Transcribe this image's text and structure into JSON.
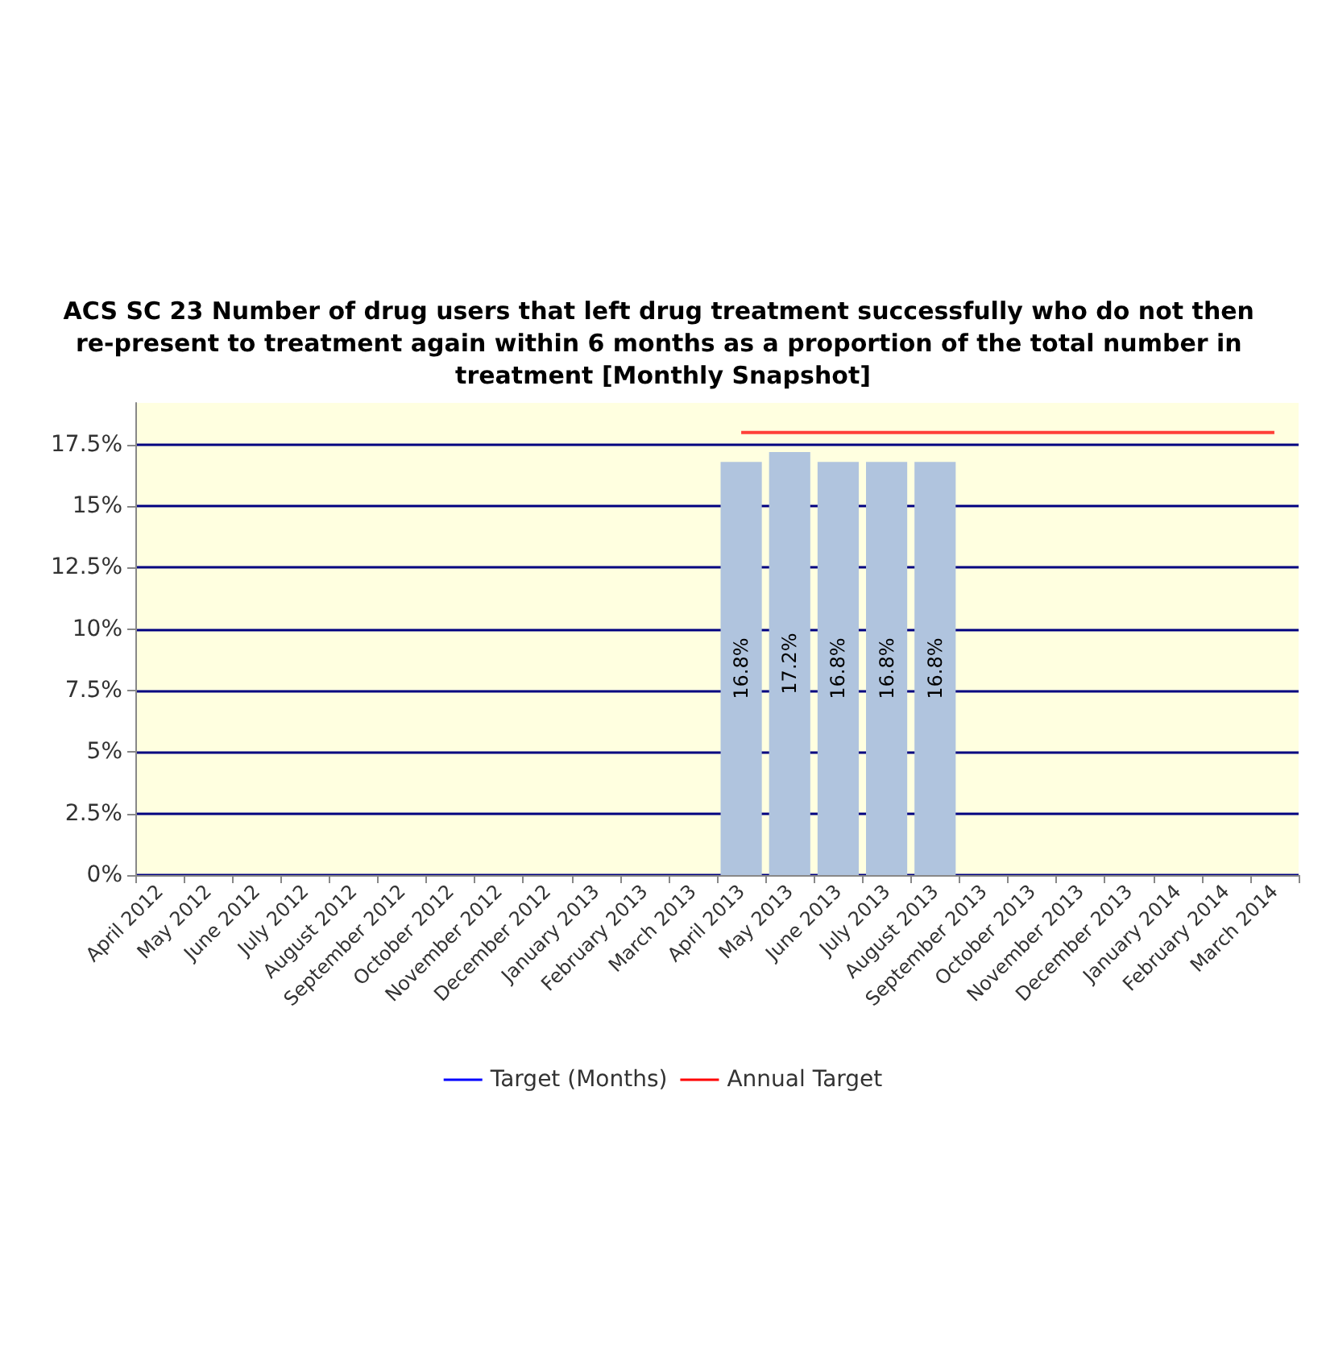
{
  "chart_data": {
    "type": "bar",
    "title": "ACS SC 23 Number of drug users that left drug treatment successfully who do not then re-present to treatment again within 6 months as a proportion of the total number in treatment [Monthly Snapshot]",
    "categories": [
      "April 2012",
      "May 2012",
      "June 2012",
      "July 2012",
      "August 2012",
      "September 2012",
      "October 2012",
      "November 2012",
      "December 2012",
      "January 2013",
      "February 2013",
      "March 2013",
      "April 2013",
      "May 2013",
      "June 2013",
      "July 2013",
      "August 2013",
      "September 2013",
      "October 2013",
      "November 2013",
      "December 2013",
      "January 2014",
      "February 2014",
      "March 2014"
    ],
    "series": [
      {
        "color": "#b0c4de",
        "values": [
          null,
          null,
          null,
          null,
          null,
          null,
          null,
          null,
          null,
          null,
          null,
          null,
          16.8,
          17.2,
          16.8,
          16.8,
          16.8,
          null,
          null,
          null,
          null,
          null,
          null,
          null
        ],
        "value_labels": [
          null,
          null,
          null,
          null,
          null,
          null,
          null,
          null,
          null,
          null,
          null,
          null,
          "16.8%",
          "17.2%",
          "16.8%",
          "16.8%",
          "16.8%",
          null,
          null,
          null,
          null,
          null,
          null,
          null
        ]
      },
      {
        "type": "line",
        "name": "Target (Months)",
        "color": "#0000ff",
        "values": [
          null,
          null,
          null,
          null,
          null,
          null,
          null,
          null,
          null,
          null,
          null,
          null,
          null,
          null,
          null,
          null,
          null,
          null,
          null,
          null,
          null,
          null,
          null,
          null
        ]
      },
      {
        "type": "line",
        "name": "Annual Target",
        "color": "#ff0000",
        "values": [
          null,
          null,
          null,
          null,
          null,
          null,
          null,
          null,
          null,
          null,
          null,
          null,
          18,
          18,
          18,
          18,
          18,
          18,
          18,
          18,
          18,
          18,
          18,
          18
        ]
      }
    ],
    "ylim": [
      0,
      19.2
    ],
    "yticks": [
      {
        "value": 0,
        "label": "0%"
      },
      {
        "value": 2.5,
        "label": "2.5%"
      },
      {
        "value": 5,
        "label": "5%"
      },
      {
        "value": 7.5,
        "label": "7.5%"
      },
      {
        "value": 10,
        "label": "10%"
      },
      {
        "value": 12.5,
        "label": "12.5%"
      },
      {
        "value": 15,
        "label": "15%"
      },
      {
        "value": 17.5,
        "label": "17.5%"
      }
    ],
    "grid": "y",
    "legend": "bottom"
  }
}
